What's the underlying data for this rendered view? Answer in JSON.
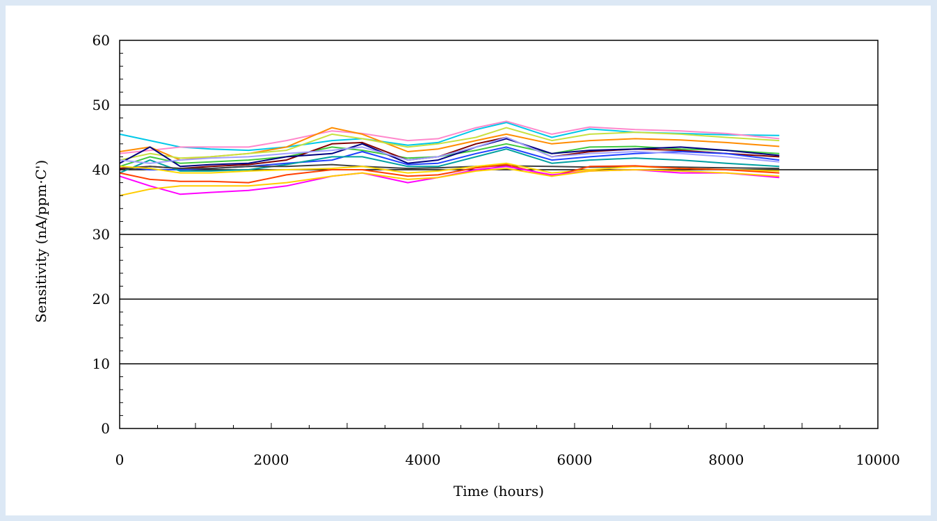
{
  "chart_data": {
    "type": "line",
    "title": "",
    "xlabel": "Time (hours)",
    "ylabel": "Sensitivity (nA/ppm·C')",
    "xlim": [
      0,
      10000
    ],
    "ylim": [
      0,
      60
    ],
    "x_ticks": [
      0,
      2000,
      4000,
      6000,
      8000,
      10000
    ],
    "y_ticks": [
      0,
      10,
      20,
      30,
      40,
      50,
      60
    ],
    "y_gridlines": [
      10,
      20,
      30,
      40,
      50
    ],
    "grid": true,
    "legend": "none",
    "x": [
      0,
      400,
      800,
      1200,
      1700,
      2200,
      2800,
      3200,
      3800,
      4200,
      4700,
      5100,
      5700,
      6200,
      6800,
      7400,
      8000,
      8700
    ],
    "series": [
      {
        "color": "#00c8e8",
        "values": [
          45.5,
          44.5,
          43.5,
          43.2,
          43.0,
          43.5,
          44.5,
          44.8,
          43.8,
          44.2,
          46.2,
          47.3,
          45.0,
          46.3,
          45.8,
          45.6,
          45.4,
          45.3
        ]
      },
      {
        "color": "#ff88cc",
        "values": [
          42.5,
          43.0,
          43.5,
          43.5,
          43.5,
          44.5,
          46.0,
          45.6,
          44.5,
          44.8,
          46.5,
          47.5,
          45.5,
          46.6,
          46.2,
          46.0,
          45.6,
          44.8
        ]
      },
      {
        "color": "#ff8c00",
        "values": [
          42.8,
          43.5,
          41.5,
          42.0,
          42.5,
          43.5,
          46.5,
          45.5,
          42.8,
          43.2,
          44.5,
          45.5,
          44.0,
          44.5,
          44.8,
          44.6,
          44.2,
          43.6
        ]
      },
      {
        "color": "#c8e040",
        "values": [
          41.5,
          42.5,
          41.8,
          42.0,
          42.5,
          43.0,
          45.5,
          44.8,
          43.5,
          44.0,
          45.0,
          46.5,
          44.5,
          45.5,
          45.8,
          45.5,
          45.0,
          44.5
        ]
      },
      {
        "color": "#40c840",
        "values": [
          40.5,
          42.0,
          41.0,
          41.2,
          41.5,
          42.0,
          43.5,
          43.0,
          41.8,
          42.0,
          43.0,
          44.0,
          42.5,
          43.5,
          43.6,
          43.2,
          43.0,
          42.5
        ]
      },
      {
        "color": "#800000",
        "values": [
          40.2,
          40.5,
          40.2,
          40.5,
          40.8,
          41.5,
          44.0,
          44.2,
          41.5,
          42.0,
          44.0,
          45.0,
          42.0,
          42.8,
          43.2,
          43.0,
          42.5,
          42.0
        ]
      },
      {
        "color": "#000080",
        "values": [
          41.0,
          43.5,
          40.5,
          40.8,
          41.0,
          42.0,
          42.5,
          44.0,
          41.0,
          41.5,
          43.5,
          44.8,
          42.5,
          43.0,
          43.2,
          43.5,
          43.0,
          42.2
        ]
      },
      {
        "color": "#2040ff",
        "values": [
          40.5,
          40.0,
          40.0,
          40.2,
          40.5,
          41.0,
          41.5,
          42.8,
          40.8,
          41.0,
          42.5,
          43.5,
          41.5,
          42.0,
          42.5,
          42.8,
          42.5,
          41.5
        ]
      },
      {
        "color": "#00a0a0",
        "values": [
          39.5,
          41.5,
          39.8,
          39.8,
          40.0,
          40.8,
          42.0,
          42.0,
          40.5,
          40.5,
          42.0,
          43.2,
          41.0,
          41.5,
          41.8,
          41.5,
          41.0,
          40.5
        ]
      },
      {
        "color": "#a0a0ff",
        "values": [
          41.5,
          41.0,
          41.5,
          41.8,
          42.0,
          42.5,
          43.0,
          43.5,
          41.5,
          42.0,
          43.5,
          45.0,
          42.0,
          42.5,
          42.8,
          42.5,
          42.0,
          41.2
        ]
      },
      {
        "color": "#404040",
        "values": [
          40.0,
          40.5,
          40.2,
          40.2,
          40.5,
          40.5,
          40.8,
          40.5,
          40.2,
          40.3,
          40.5,
          40.6,
          40.5,
          40.4,
          40.5,
          40.4,
          40.3,
          40.2
        ]
      },
      {
        "color": "#ffd700",
        "values": [
          40.5,
          40.2,
          39.5,
          39.5,
          39.8,
          40.0,
          40.2,
          40.5,
          39.5,
          39.8,
          40.5,
          41.0,
          39.5,
          40.0,
          40.5,
          40.2,
          40.0,
          39.8
        ]
      },
      {
        "color": "#ff4000",
        "values": [
          39.5,
          38.5,
          38.2,
          38.2,
          38.0,
          39.2,
          40.0,
          40.0,
          39.0,
          39.2,
          40.3,
          40.8,
          39.0,
          40.5,
          40.6,
          40.2,
          40.0,
          39.5
        ]
      },
      {
        "color": "#ff00ff",
        "values": [
          39.0,
          37.5,
          36.2,
          36.5,
          36.8,
          37.5,
          39.0,
          39.5,
          38.0,
          38.8,
          40.0,
          40.5,
          39.2,
          39.8,
          40.0,
          39.5,
          39.5,
          38.8
        ]
      },
      {
        "color": "#ffcc00",
        "values": [
          36.0,
          37.0,
          37.5,
          37.5,
          37.5,
          38.0,
          39.0,
          39.5,
          38.5,
          38.8,
          39.8,
          40.2,
          39.0,
          39.8,
          40.0,
          39.8,
          39.5,
          39.0
        ]
      }
    ]
  }
}
